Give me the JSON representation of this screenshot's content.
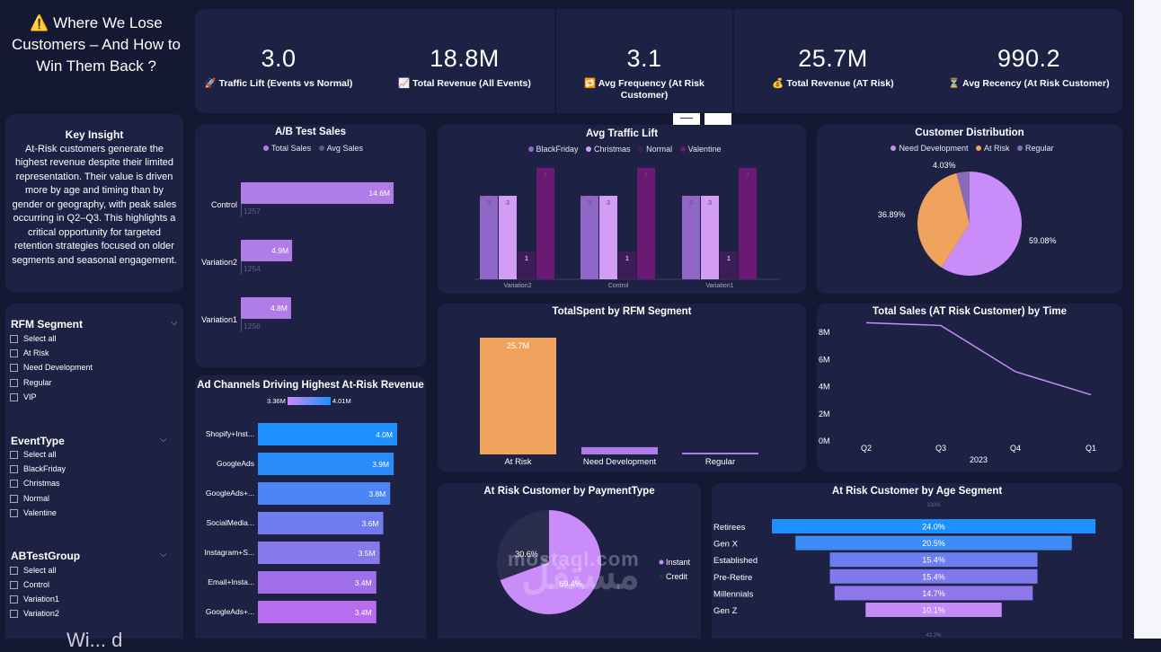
{
  "title": {
    "icon": "⚠️",
    "text": "Where We Lose Customers – And How to Win Them Back ?"
  },
  "kpis": [
    {
      "value": "3.0",
      "icon": "🚀",
      "label": "Traffic Lift (Events vs Normal)"
    },
    {
      "value": "18.8M",
      "icon": "📈",
      "label": "Total Revenue (All Events)"
    },
    {
      "value": "3.1",
      "icon": "🔁",
      "label": "Avg Frequency (At Risk Customer)"
    },
    {
      "value": "25.7M",
      "icon": "💰",
      "label": "Total Revenue (AT Risk)"
    },
    {
      "value": "990.2",
      "icon": "⏳",
      "label": "Avg Recency (At Risk Customer)"
    }
  ],
  "insight": {
    "heading": "Key Insight",
    "body": "At-Risk customers generate the highest revenue despite their limited representation. Their value is driven more by age and timing than by gender or geography, with peak sales occurring in Q2–Q3. This highlights a critical opportunity for targeted retention strategies focused on older segments and seasonal engagement."
  },
  "slicers": [
    {
      "title": "RFM Segment",
      "items": [
        "Select all",
        "At Risk",
        "Need Development",
        "Regular",
        "VIP"
      ]
    },
    {
      "title": "EventType",
      "items": [
        "Select all",
        "BlackFriday",
        "Christmas",
        "Normal",
        "Valentine"
      ]
    },
    {
      "title": "ABTestGroup",
      "items": [
        "Select all",
        "Control",
        "Variation1",
        "Variation2"
      ]
    }
  ],
  "partial_text": "Wi... d",
  "colors": {
    "purple": "#b07ce8",
    "orange": "#efa35c",
    "blue": "#1e90ff",
    "lavender": "#c98cf8",
    "dark_purple": "#6b1a73"
  },
  "chart_data": [
    {
      "id": "ab_test_sales",
      "type": "bar",
      "title": "A/B Test Sales",
      "legend": [
        "Total Sales",
        "Avg Sales"
      ],
      "categories": [
        "Control",
        "Variation2",
        "Variation1"
      ],
      "series": [
        {
          "name": "Total Sales",
          "values": [
            14.6,
            4.9,
            4.8
          ],
          "labels": [
            "14.6M",
            "4.9M",
            "4.8M"
          ]
        },
        {
          "name": "Avg Sales",
          "values": [
            1257,
            1254,
            1256
          ],
          "labels": [
            "1257",
            "1254",
            "1256"
          ]
        }
      ]
    },
    {
      "id": "avg_traffic_lift",
      "type": "bar",
      "title": "Avg Traffic Lift",
      "legend": [
        "BlackFriday",
        "Christmas",
        "Normal",
        "Valentine"
      ],
      "categories": [
        "Variation2",
        "Control",
        "Variation1"
      ],
      "series": [
        {
          "name": "BlackFriday",
          "values": [
            3,
            3,
            3
          ]
        },
        {
          "name": "Christmas",
          "values": [
            3,
            3,
            3
          ]
        },
        {
          "name": "Normal",
          "values": [
            1,
            1,
            1
          ]
        },
        {
          "name": "Valentine",
          "values": [
            4,
            4,
            4
          ]
        }
      ]
    },
    {
      "id": "customer_distribution",
      "type": "pie",
      "title": "Customer Distribution",
      "legend": [
        "Need Development",
        "At Risk",
        "Regular"
      ],
      "slices": [
        {
          "name": "Need Development",
          "value": 59.08,
          "label": "59.08%"
        },
        {
          "name": "At Risk",
          "value": 36.89,
          "label": "36.89%"
        },
        {
          "name": "Regular",
          "value": 4.03,
          "label": "4.03%"
        }
      ]
    },
    {
      "id": "ad_channels",
      "type": "bar",
      "title": "Ad Channels Driving Highest At-Risk Revenue",
      "legend_min": "3.36M",
      "legend_max": "4.01M",
      "categories": [
        "Shopify+Inst...",
        "GoogleAds",
        "GoogleAds+...",
        "SocialMedia...",
        "Instagram+S...",
        "Email+Insta...",
        "GoogleAds+..."
      ],
      "values": [
        4.0,
        3.9,
        3.8,
        3.6,
        3.5,
        3.4,
        3.4
      ],
      "labels": [
        "4.0M",
        "3.9M",
        "3.8M",
        "3.6M",
        "3.5M",
        "3.4M",
        "3.4M"
      ]
    },
    {
      "id": "totalspent_rfm",
      "type": "bar",
      "title": "TotalSpent by RFM Segment",
      "categories": [
        "At Risk",
        "Need Development",
        "Regular"
      ],
      "values": [
        25.7,
        1.6,
        0.4
      ],
      "labels": [
        "25.7M",
        "",
        ""
      ]
    },
    {
      "id": "sales_by_time",
      "type": "line",
      "title": "Total Sales (AT Risk Customer) by Time",
      "x": [
        "Q2",
        "Q3",
        "Q4",
        "Q1"
      ],
      "xlabel": "2023",
      "y": [
        8.7,
        8.5,
        5.1,
        3.4
      ],
      "yticks": [
        "0M",
        "2M",
        "4M",
        "6M",
        "8M"
      ],
      "ylim": [
        0,
        9
      ]
    },
    {
      "id": "payment_type",
      "type": "pie",
      "title": "At Risk Customer by PaymentType",
      "legend": [
        "Instant",
        "Credit"
      ],
      "slices": [
        {
          "name": "Instant",
          "value": 69.4,
          "label": "69.4%"
        },
        {
          "name": "Credit",
          "value": 30.6,
          "label": "30.6%"
        }
      ]
    },
    {
      "id": "age_segment",
      "type": "bar",
      "title": "At Risk Customer by Age Segment",
      "top_label": "100%",
      "bottom_label": "42.2%",
      "categories": [
        "Retirees",
        "Gen X",
        "Established",
        "Pre-Retire",
        "Millennials",
        "Gen Z"
      ],
      "values": [
        24.0,
        20.5,
        15.4,
        15.4,
        14.7,
        10.1
      ],
      "labels": [
        "24.0%",
        "20.5%",
        "15.4%",
        "15.4%",
        "14.7%",
        "10.1%"
      ]
    }
  ]
}
